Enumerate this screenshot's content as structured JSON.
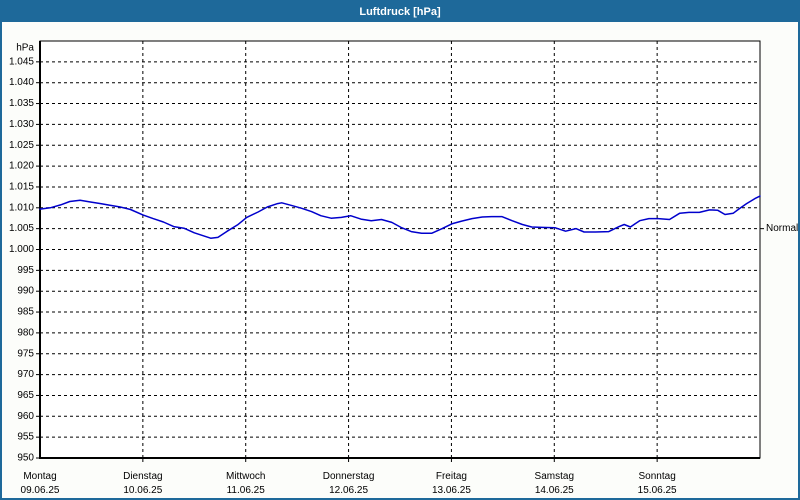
{
  "window": {
    "title": "Luftdruck [hPa]"
  },
  "colors": {
    "titlebar_bg": "#1e699a",
    "titlebar_text": "#ffffff",
    "window_border": "#1e699a",
    "window_bg": "#fcfdfa",
    "plot_bg": "#ffffff",
    "grid": "#000000",
    "axis": "#000000",
    "label_text": "#000000",
    "line": "#0000cc"
  },
  "chart_data": {
    "type": "line",
    "title": "Luftdruck [hPa]",
    "y_unit_label": "hPa",
    "ylabel": "hPa",
    "xlabel": "",
    "ylim": [
      950,
      1050
    ],
    "y_tick_step": 5,
    "grid": "dashed-black-horizontal-and-day-boundaries",
    "legend_position": "none",
    "y_ticks": [
      {
        "value": 1045,
        "label": "1.045"
      },
      {
        "value": 1040,
        "label": "1.040"
      },
      {
        "value": 1035,
        "label": "1.035"
      },
      {
        "value": 1030,
        "label": "1.030"
      },
      {
        "value": 1025,
        "label": "1.025"
      },
      {
        "value": 1020,
        "label": "1.020"
      },
      {
        "value": 1015,
        "label": "1.015"
      },
      {
        "value": 1010,
        "label": "1.010"
      },
      {
        "value": 1005,
        "label": "1.005"
      },
      {
        "value": 1000,
        "label": "1.000"
      },
      {
        "value": 995,
        "label": "995"
      },
      {
        "value": 990,
        "label": "990"
      },
      {
        "value": 985,
        "label": "985"
      },
      {
        "value": 980,
        "label": "980"
      },
      {
        "value": 975,
        "label": "975"
      },
      {
        "value": 970,
        "label": "970"
      },
      {
        "value": 965,
        "label": "965"
      },
      {
        "value": 960,
        "label": "960"
      },
      {
        "value": 955,
        "label": "955"
      },
      {
        "value": 950,
        "label": "950"
      }
    ],
    "x_days": [
      {
        "name": "Montag",
        "date": "09.06.25"
      },
      {
        "name": "Dienstag",
        "date": "10.06.25"
      },
      {
        "name": "Mittwoch",
        "date": "11.06.25"
      },
      {
        "name": "Donnerstag",
        "date": "12.06.25"
      },
      {
        "name": "Freitag",
        "date": "13.06.25"
      },
      {
        "name": "Samstag",
        "date": "14.06.25"
      },
      {
        "name": "Sonntag",
        "date": "15.06.25"
      }
    ],
    "normal_marker": {
      "label": "Normal",
      "value": 1005
    },
    "series": [
      {
        "name": "Luftdruck",
        "unit": "hPa",
        "color": "#0000cc",
        "points_day_value": [
          [
            0.0,
            1009.7
          ],
          [
            0.1,
            1010.0
          ],
          [
            0.2,
            1010.7
          ],
          [
            0.29,
            1011.5
          ],
          [
            0.39,
            1011.8
          ],
          [
            0.49,
            1011.4
          ],
          [
            0.59,
            1011.0
          ],
          [
            0.68,
            1010.6
          ],
          [
            0.78,
            1010.2
          ],
          [
            0.88,
            1009.6
          ],
          [
            1.0,
            1008.3
          ],
          [
            1.1,
            1007.4
          ],
          [
            1.2,
            1006.6
          ],
          [
            1.3,
            1005.5
          ],
          [
            1.4,
            1005.1
          ],
          [
            1.5,
            1004.0
          ],
          [
            1.6,
            1003.2
          ],
          [
            1.66,
            1002.7
          ],
          [
            1.73,
            1002.9
          ],
          [
            1.82,
            1004.4
          ],
          [
            1.92,
            1005.9
          ],
          [
            2.01,
            1007.7
          ],
          [
            2.12,
            1009.0
          ],
          [
            2.21,
            1010.2
          ],
          [
            2.31,
            1011.0
          ],
          [
            2.35,
            1011.2
          ],
          [
            2.44,
            1010.6
          ],
          [
            2.54,
            1009.9
          ],
          [
            2.64,
            1009.1
          ],
          [
            2.73,
            1008.1
          ],
          [
            2.83,
            1007.5
          ],
          [
            2.93,
            1007.7
          ],
          [
            3.02,
            1008.1
          ],
          [
            3.12,
            1007.3
          ],
          [
            3.22,
            1006.9
          ],
          [
            3.32,
            1007.2
          ],
          [
            3.42,
            1006.5
          ],
          [
            3.51,
            1005.3
          ],
          [
            3.61,
            1004.3
          ],
          [
            3.71,
            1003.9
          ],
          [
            3.81,
            1003.9
          ],
          [
            3.91,
            1005.0
          ],
          [
            4.01,
            1006.2
          ],
          [
            4.1,
            1006.8
          ],
          [
            4.2,
            1007.4
          ],
          [
            4.3,
            1007.8
          ],
          [
            4.39,
            1007.9
          ],
          [
            4.49,
            1007.9
          ],
          [
            4.59,
            1006.9
          ],
          [
            4.69,
            1006.0
          ],
          [
            4.78,
            1005.4
          ],
          [
            4.88,
            1005.3
          ],
          [
            5.01,
            1005.2
          ],
          [
            5.11,
            1004.4
          ],
          [
            5.21,
            1005.0
          ],
          [
            5.29,
            1004.2
          ],
          [
            5.4,
            1004.2
          ],
          [
            5.53,
            1004.3
          ],
          [
            5.63,
            1005.5
          ],
          [
            5.68,
            1006.0
          ],
          [
            5.74,
            1005.4
          ],
          [
            5.83,
            1006.9
          ],
          [
            5.92,
            1007.4
          ],
          [
            6.01,
            1007.4
          ],
          [
            6.12,
            1007.2
          ],
          [
            6.22,
            1008.7
          ],
          [
            6.31,
            1008.9
          ],
          [
            6.41,
            1008.9
          ],
          [
            6.51,
            1009.5
          ],
          [
            6.59,
            1009.4
          ],
          [
            6.66,
            1008.4
          ],
          [
            6.74,
            1008.7
          ],
          [
            6.8,
            1009.8
          ],
          [
            6.87,
            1011.0
          ],
          [
            6.95,
            1012.2
          ],
          [
            7.0,
            1012.8
          ]
        ]
      }
    ]
  }
}
